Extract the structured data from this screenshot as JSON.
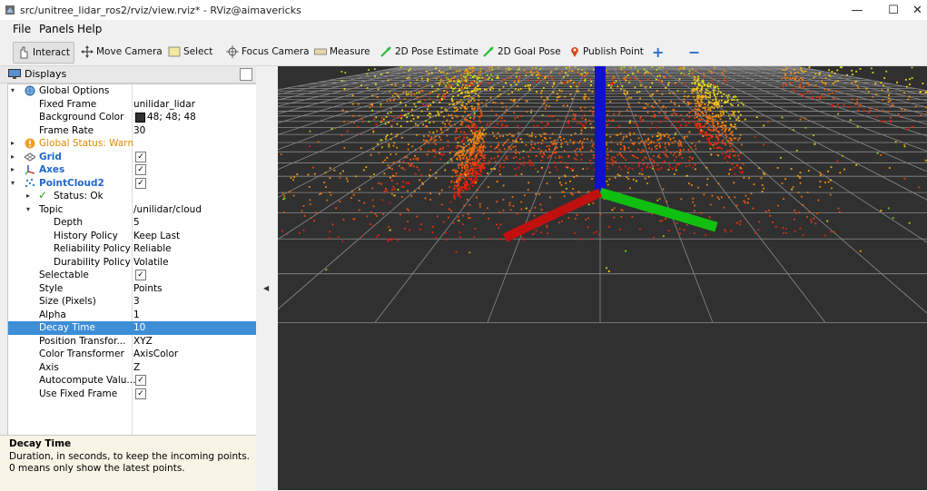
{
  "window": {
    "title": "src/unitree_lidar_ros2/rviz/view.rviz* - RViz@aimavericks",
    "minimize": "—",
    "maximize": "☐",
    "close": "✕"
  },
  "menu": [
    "File",
    "Panels",
    "Help"
  ],
  "toolbar": {
    "interact": "Interact",
    "move_camera": "Move Camera",
    "select": "Select",
    "focus_camera": "Focus Camera",
    "measure": "Measure",
    "pose_estimate": "2D Pose Estimate",
    "goal_pose": "2D Goal Pose",
    "publish_point": "Publish Point",
    "plus": "+",
    "minus": "−"
  },
  "displays": {
    "title": "Displays",
    "rows": [
      {
        "label": "Global Options",
        "value": ""
      },
      {
        "label": "Fixed Frame",
        "value": "unilidar_lidar"
      },
      {
        "label": "Background Color",
        "value": "48; 48; 48"
      },
      {
        "label": "Frame Rate",
        "value": "30"
      },
      {
        "label": "Global Status: Warn",
        "value": ""
      },
      {
        "label": "Grid",
        "value": "✓"
      },
      {
        "label": "Axes",
        "value": "✓"
      },
      {
        "label": "PointCloud2",
        "value": "✓"
      },
      {
        "label": "Status: Ok",
        "value": ""
      },
      {
        "label": "Topic",
        "value": "/unilidar/cloud"
      },
      {
        "label": "Depth",
        "value": "5"
      },
      {
        "label": "History Policy",
        "value": "Keep Last"
      },
      {
        "label": "Reliability Policy",
        "value": "Reliable"
      },
      {
        "label": "Durability Policy",
        "value": "Volatile"
      },
      {
        "label": "Selectable",
        "value": "✓"
      },
      {
        "label": "Style",
        "value": "Points"
      },
      {
        "label": "Size (Pixels)",
        "value": "3"
      },
      {
        "label": "Alpha",
        "value": "1"
      },
      {
        "label": "Decay Time",
        "value": "10"
      },
      {
        "label": "Position Transfor...",
        "value": "XYZ"
      },
      {
        "label": "Color Transformer",
        "value": "AxisColor"
      },
      {
        "label": "Axis",
        "value": "Z"
      },
      {
        "label": "Autocompute Valu...",
        "value": "✓"
      },
      {
        "label": "Use Fixed Frame",
        "value": "✓"
      }
    ]
  },
  "help": {
    "title": "Decay Time",
    "body": "Duration, in seconds, to keep the incoming points. 0 means only show the latest points."
  },
  "colors": {
    "background": "#303030",
    "selected_row": "#3d8ed6",
    "warn": "#e08a00",
    "link_blue": "#2266cc"
  }
}
